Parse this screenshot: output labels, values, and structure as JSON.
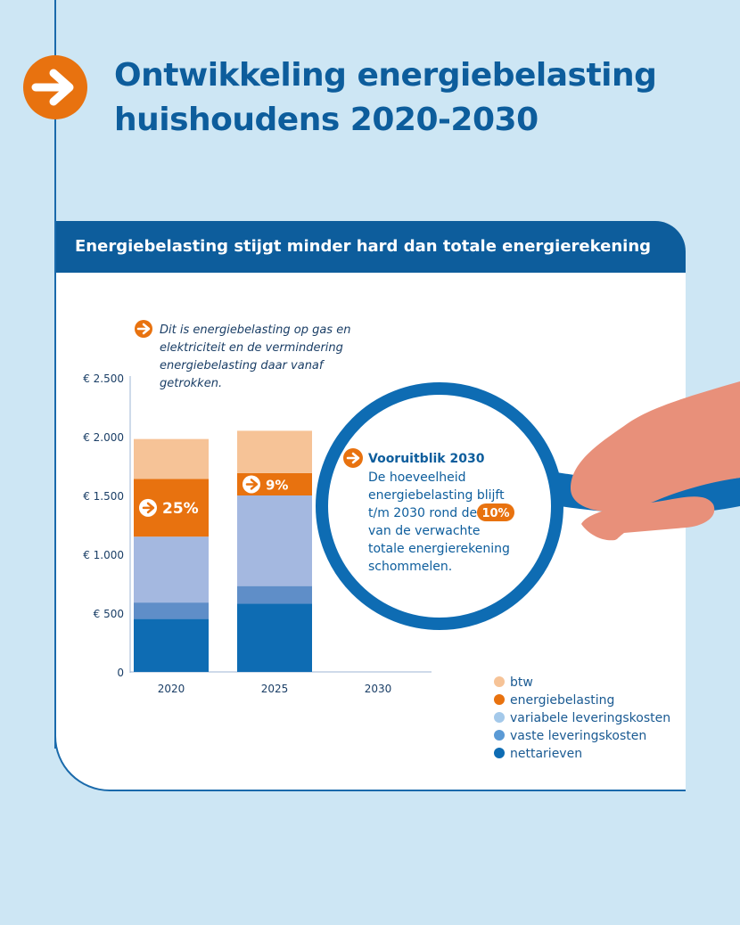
{
  "page": {
    "title": "Ontwikkeling energiebelasting huishoudens 2020-2030",
    "title_lines": [
      "Ontwikkeling energiebelasting",
      "huishoudens 2020-2030"
    ],
    "banner": "Energiebelasting stijgt minder hard dan totale energierekening",
    "arrow_icon": "arrow-right-icon"
  },
  "note": {
    "text": "Dit is energiebelasting op gas en elektriciteit en de vermindering energiebelasting daar vanaf getrokken.",
    "lines": [
      "Dit is energiebelasting op gas en",
      "elektriciteit en de vermindering",
      "energiebelasting daar vanaf",
      "getrokken."
    ]
  },
  "outlook": {
    "title": "Vooruitblik 2030",
    "lines": [
      "De hoeveelheid",
      "energiebelasting blijft",
      "t/m 2030 rond de",
      "van de verwachte",
      "totale energierekening",
      "schommelen."
    ],
    "highlight": "10%",
    "icon": "magnifying-glass-icon"
  },
  "chart_data": {
    "type": "bar",
    "stacked": true,
    "categories": [
      "2020",
      "2025",
      "2030"
    ],
    "y_tick_labels": [
      "0",
      "€ 500",
      "€ 1.000",
      "€ 1.500",
      "€ 2.000",
      "€ 2.500"
    ],
    "y_ticks": [
      0,
      500,
      1000,
      1500,
      2000,
      2500
    ],
    "ylim": [
      0,
      2500
    ],
    "series": [
      {
        "name": "nettarieven",
        "values": [
          450,
          580,
          null
        ],
        "color": "#0e6cb3"
      },
      {
        "name": "vaste leveringskosten",
        "values": [
          140,
          150,
          null
        ],
        "color": "#5f8ec8"
      },
      {
        "name": "variabele leveringskosten",
        "values": [
          560,
          770,
          null
        ],
        "color": "#a4b8e0"
      },
      {
        "name": "energiebelasting",
        "values": [
          490,
          190,
          null
        ],
        "color": "#e8720f"
      },
      {
        "name": "btw",
        "values": [
          340,
          360,
          null
        ],
        "color": "#f6c397"
      }
    ],
    "annotations": [
      {
        "category": "2020",
        "series": "energiebelasting",
        "text": "25%"
      },
      {
        "category": "2025",
        "series": "energiebelasting",
        "text": "9%"
      }
    ],
    "legend": {
      "placement": "bottom-right",
      "entries": [
        "btw",
        "energiebelasting",
        "variabele leveringskosten",
        "vaste leveringskosten",
        "nettarieven"
      ],
      "colors": [
        "#f6c397",
        "#e8720f",
        "#a4c9ea",
        "#5b9ad5",
        "#0e6cb3"
      ]
    }
  },
  "colors": {
    "background": "#cde6f4",
    "primary": "#0d5d9c",
    "accent": "#e8720f",
    "hand": "#e8907a"
  }
}
